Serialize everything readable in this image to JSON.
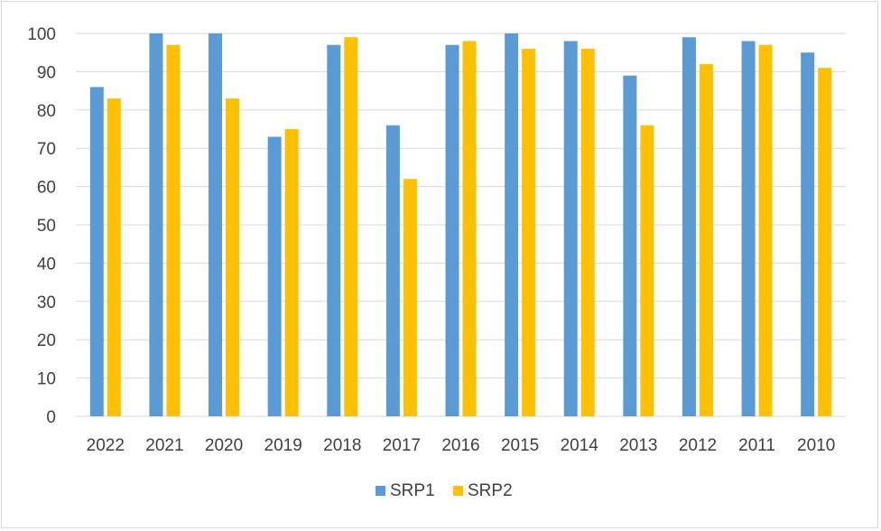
{
  "chart_data": {
    "type": "bar",
    "categories": [
      "2022",
      "2021",
      "2020",
      "2019",
      "2018",
      "2017",
      "2016",
      "2015",
      "2014",
      "2013",
      "2012",
      "2011",
      "2010"
    ],
    "series": [
      {
        "name": "SRP1",
        "color": "#5b9bd5",
        "values": [
          86,
          100,
          100,
          73,
          97,
          76,
          97,
          100,
          98,
          89,
          99,
          98,
          95
        ]
      },
      {
        "name": "SRP2",
        "color": "#ffc000",
        "values": [
          83,
          97,
          83,
          75,
          99,
          62,
          98,
          96,
          96,
          76,
          92,
          97,
          91
        ]
      }
    ],
    "ylim": [
      0,
      100
    ],
    "yticks": [
      0,
      10,
      20,
      30,
      40,
      50,
      60,
      70,
      80,
      90,
      100
    ],
    "grid": true,
    "legend_position": "bottom"
  }
}
